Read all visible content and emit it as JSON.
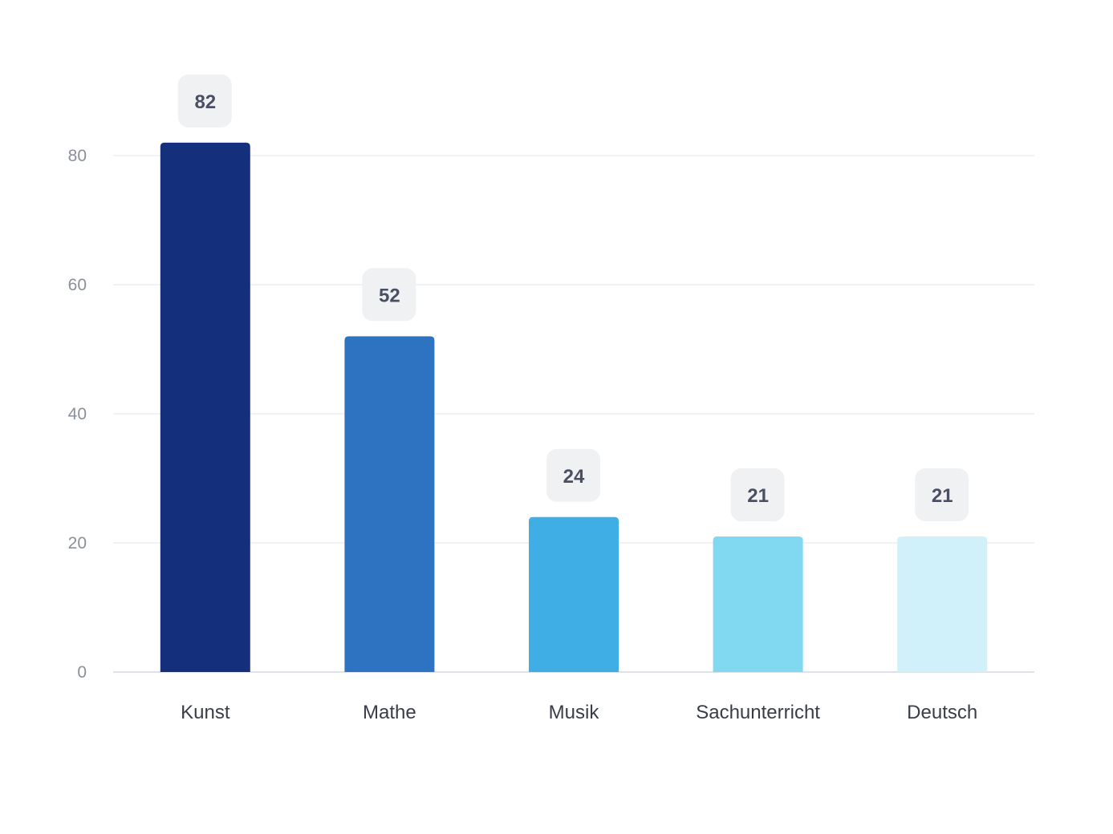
{
  "chart_data": {
    "type": "bar",
    "title": "",
    "xlabel": "",
    "ylabel": "",
    "categories": [
      "Kunst",
      "Mathe",
      "Musik",
      "Sachunterricht",
      "Deutsch"
    ],
    "values": [
      82,
      52,
      24,
      21,
      21
    ],
    "value_labels": [
      "82",
      "52",
      "24",
      "21",
      "21"
    ],
    "colors": [
      "#14307c",
      "#2d73c2",
      "#3eaee5",
      "#81d8f1",
      "#d0f1f9"
    ],
    "ylim": [
      0,
      80
    ],
    "yticks": [
      0,
      20,
      40,
      60,
      80
    ],
    "ytick_labels": [
      "0",
      "20",
      "40",
      "60",
      "80"
    ],
    "grid": true,
    "legend": "none"
  }
}
